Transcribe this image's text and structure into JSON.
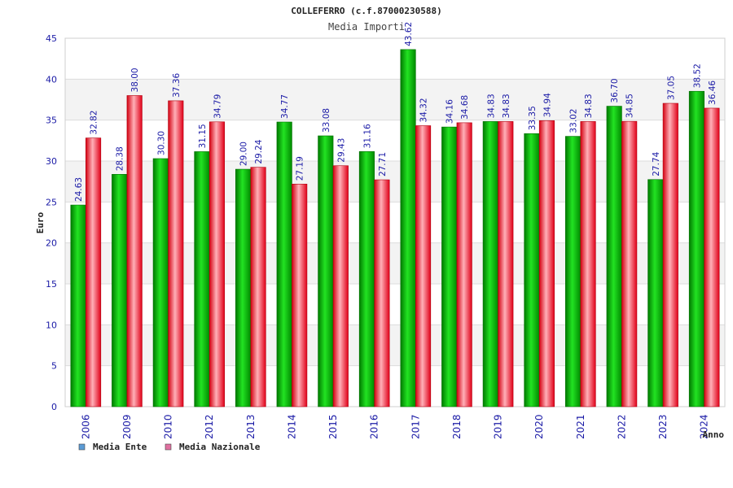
{
  "chart_data": {
    "type": "bar",
    "title": "COLLEFERRO (c.f.87000230588)",
    "subtitle": "Media Importi",
    "xlabel": "Anno",
    "ylabel": "Euro",
    "ylim": [
      0,
      45
    ],
    "yticks": [
      0,
      5,
      10,
      15,
      20,
      25,
      30,
      35,
      40,
      45
    ],
    "grid": true,
    "legend_position": "bottom-left",
    "categories": [
      "2006",
      "2009",
      "2010",
      "2012",
      "2013",
      "2014",
      "2015",
      "2016",
      "2017",
      "2018",
      "2019",
      "2020",
      "2021",
      "2022",
      "2023",
      "2024"
    ],
    "series": [
      {
        "name": "Media Ente",
        "color": "#00c000",
        "legend_color": "#5b9bd5",
        "values": [
          24.63,
          28.38,
          30.3,
          31.15,
          29.0,
          34.77,
          33.08,
          31.16,
          43.62,
          34.16,
          34.83,
          33.35,
          33.02,
          36.7,
          27.74,
          38.52
        ],
        "labels": [
          "24.63",
          "28.38",
          "30.30",
          "31.15",
          "29.00",
          "34.77",
          "33.08",
          "31.16",
          "43.62",
          "34.16",
          "34.83",
          "33.35",
          "33.02",
          "36.70",
          "27.74",
          "38.52"
        ]
      },
      {
        "name": "Media Nazionale",
        "color": "#ff2a3a",
        "legend_color": "#e070a0",
        "values": [
          32.82,
          38.0,
          37.36,
          34.79,
          29.24,
          27.19,
          29.43,
          27.71,
          34.32,
          34.68,
          34.83,
          34.94,
          34.83,
          34.85,
          37.05,
          36.46
        ],
        "labels": [
          "32.82",
          "38.00",
          "37.36",
          "34.79",
          "29.24",
          "27.19",
          "29.43",
          "27.71",
          "34.32",
          "34.68",
          "34.83",
          "34.94",
          "34.83",
          "34.85",
          "37.05",
          "36.46"
        ]
      }
    ]
  }
}
